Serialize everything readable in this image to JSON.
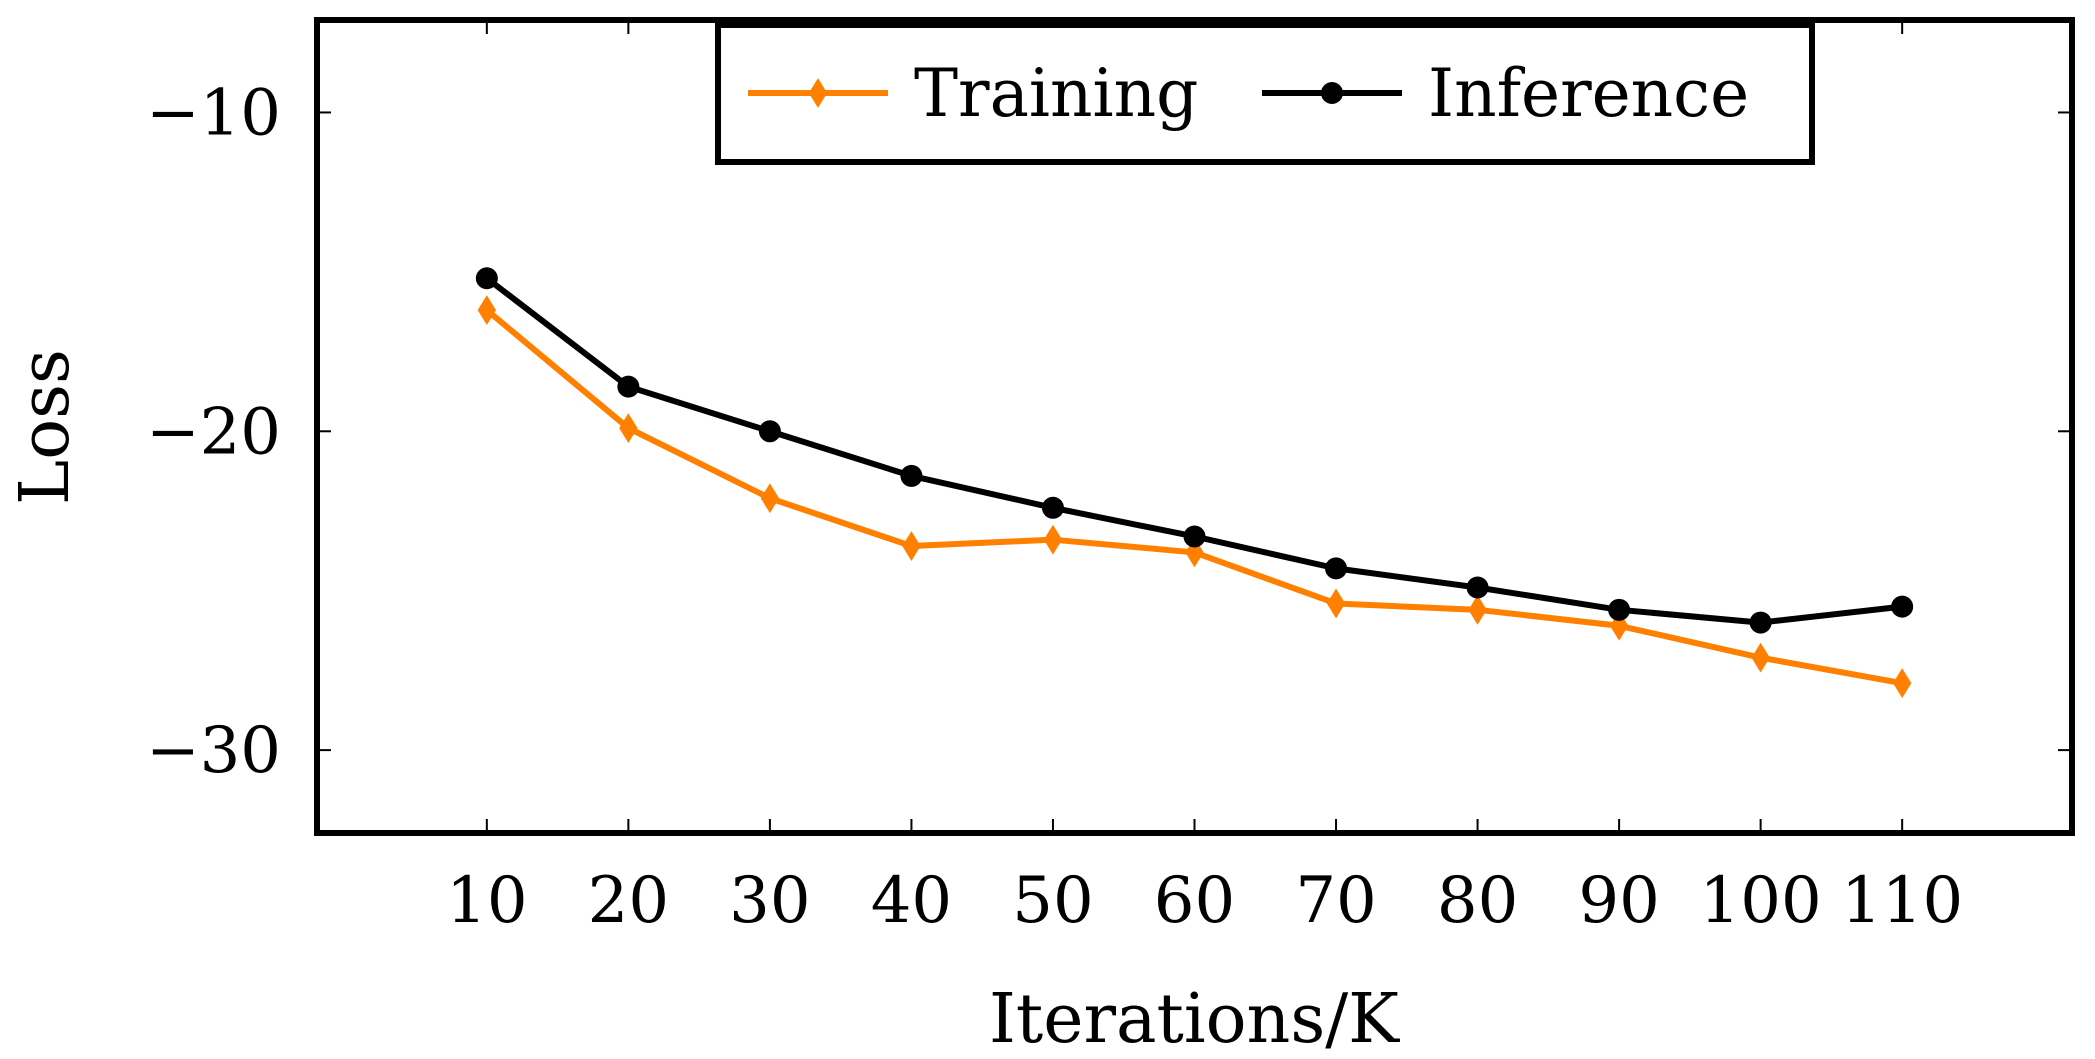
{
  "chart_data": {
    "type": "line",
    "title": "",
    "xlabel": "Iterations/K",
    "ylabel": "Loss",
    "x": [
      10,
      20,
      30,
      40,
      50,
      60,
      70,
      80,
      90,
      100,
      110
    ],
    "x_tick_labels": [
      "10",
      "20",
      "30",
      "40",
      "50",
      "60",
      "70",
      "80",
      "90",
      "100",
      "110"
    ],
    "xlim": [
      -2,
      122
    ],
    "y_ticks": [
      -10,
      -20,
      -30
    ],
    "y_tick_labels": [
      "−10",
      "−20",
      "−30"
    ],
    "ylim": [
      -32.6,
      -7.1
    ],
    "grid": false,
    "legend_position": "top-center",
    "series": [
      {
        "name": "Training",
        "color": "#ff8000",
        "marker": "diamond",
        "values": [
          -16.2,
          -19.9,
          -22.1,
          -23.6,
          -23.4,
          -23.8,
          -25.4,
          -25.6,
          -26.1,
          -27.1,
          -27.9
        ]
      },
      {
        "name": "Inference",
        "color": "#000000",
        "marker": "circle",
        "values": [
          -15.2,
          -18.6,
          -20.0,
          -21.4,
          -22.4,
          -23.3,
          -24.3,
          -24.9,
          -25.6,
          -26.0,
          -25.5
        ]
      }
    ]
  }
}
